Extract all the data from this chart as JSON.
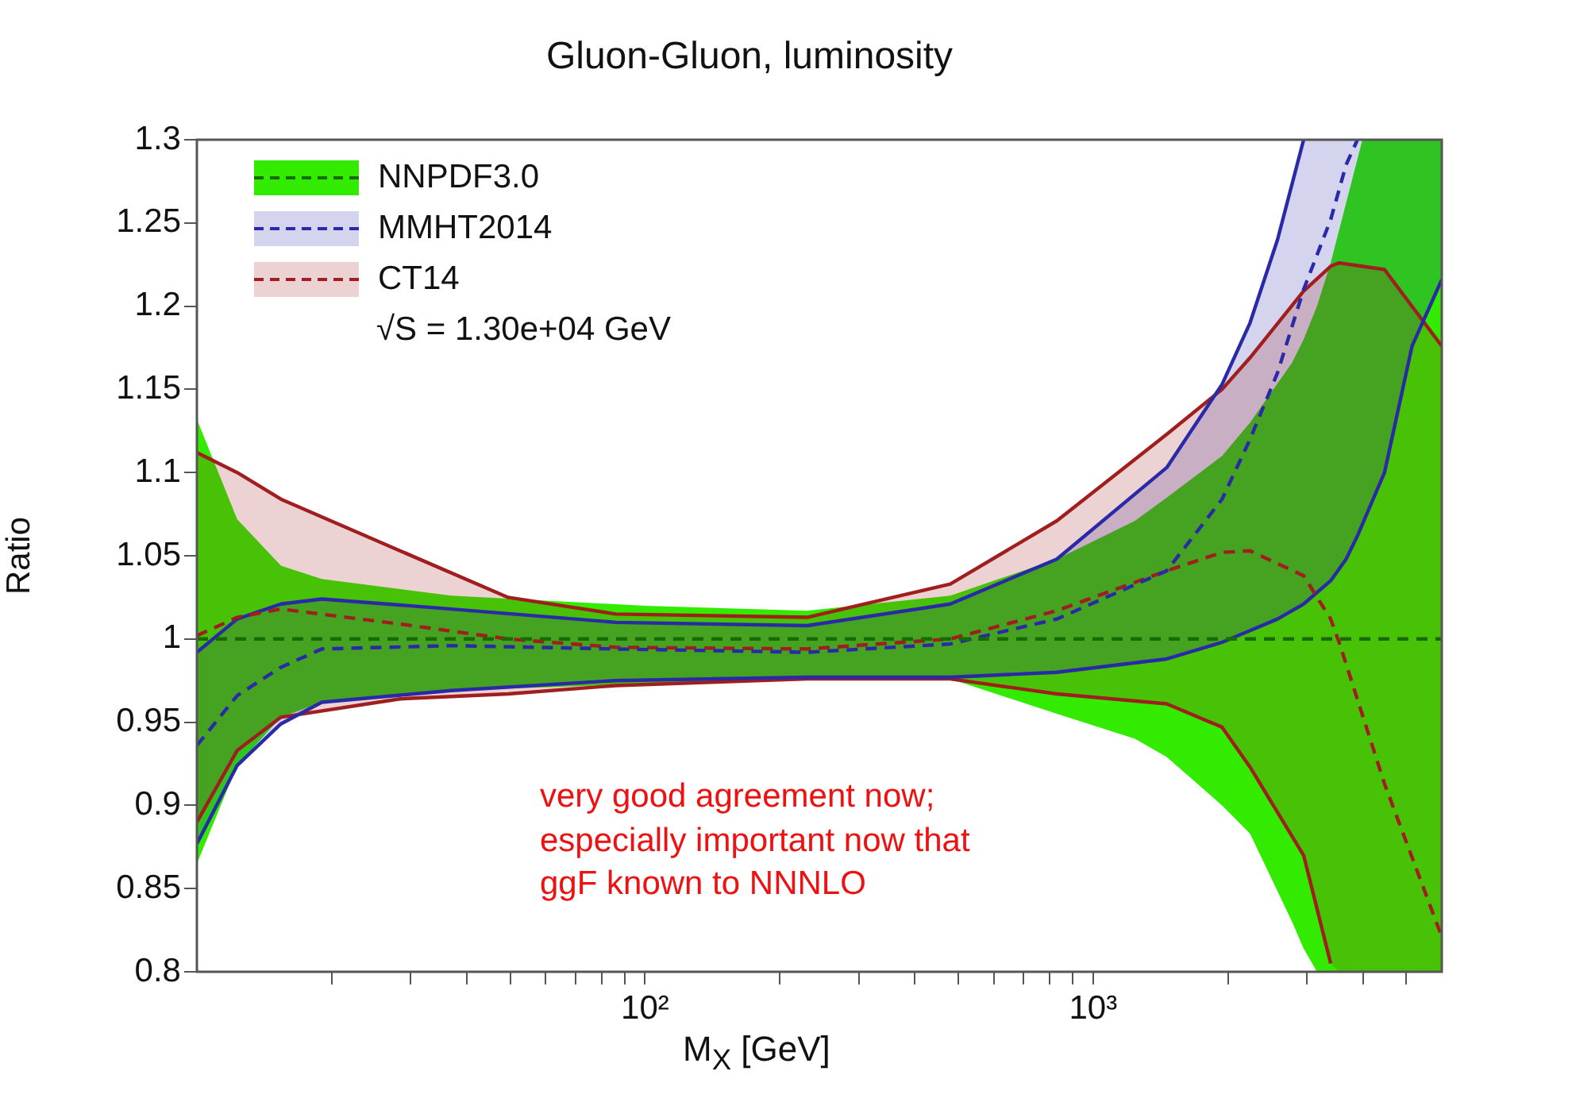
{
  "chart_data": {
    "type": "line",
    "title": "Gluon-Gluon, luminosity",
    "xlabel": "M$_{X}$ [GeV]",
    "ylabel": "Ratio",
    "log": "x",
    "legend": "top left",
    "grid": false,
    "xlim": [
      10,
      6000
    ],
    "ylim": [
      0.8,
      1.3
    ],
    "xticks": [
      {
        "value": 20,
        "label": null
      },
      {
        "value": 30,
        "label": null
      },
      {
        "value": 40,
        "label": null
      },
      {
        "value": 50,
        "label": null
      },
      {
        "value": 60,
        "label": null
      },
      {
        "value": 70,
        "label": null
      },
      {
        "value": 80,
        "label": null
      },
      {
        "value": 90,
        "label": null
      },
      {
        "value": 100,
        "label": "10²"
      },
      {
        "value": 200,
        "label": null
      },
      {
        "value": 300,
        "label": null
      },
      {
        "value": 400,
        "label": null
      },
      {
        "value": 500,
        "label": null
      },
      {
        "value": 600,
        "label": null
      },
      {
        "value": 700,
        "label": null
      },
      {
        "value": 800,
        "label": null
      },
      {
        "value": 900,
        "label": null
      },
      {
        "value": 1000,
        "label": "10³"
      },
      {
        "value": 2000,
        "label": null
      },
      {
        "value": 3000,
        "label": null
      },
      {
        "value": 4000,
        "label": null
      },
      {
        "value": 5000,
        "label": null
      }
    ],
    "yticks": [
      0.8,
      0.85,
      0.9,
      0.95,
      1,
      1.05,
      1.1,
      1.15,
      1.2,
      1.25,
      1.3
    ],
    "series": [
      {
        "name": "NNPDF3.0",
        "color": "#176b00",
        "line_style": "dashed",
        "x": [
          10,
          12.3,
          15.4,
          19,
          37,
          100,
          230,
          480,
          830,
          1240,
          1460,
          1940,
          2240,
          2780,
          2950,
          3160,
          3390,
          3990,
          6000
        ],
        "values": [
          1,
          1,
          1,
          1,
          1,
          1,
          1,
          1,
          1,
          1,
          1,
          1,
          1,
          1,
          1,
          1,
          1,
          1,
          1
        ],
        "upper": [
          1.132,
          1.072,
          1.044,
          1.036,
          1.026,
          1.02,
          1.017,
          1.026,
          1.048,
          1.071,
          1.085,
          1.11,
          1.13,
          1.166,
          1.18,
          1.2,
          1.226,
          1.3,
          1.3
        ],
        "lower": [
          0.865,
          0.924,
          0.953,
          0.962,
          0.969,
          0.973,
          0.976,
          0.976,
          0.955,
          0.94,
          0.929,
          0.9,
          0.883,
          0.83,
          0.814,
          0.8,
          0.8,
          0.8,
          0.8
        ]
      },
      {
        "name": "MMHT2014",
        "color": "#2a2aa8",
        "line_style": "dashed",
        "x": [
          10,
          12.3,
          15.4,
          19,
          37,
          86,
          230,
          480,
          830,
          1460,
          1940,
          2240,
          2580,
          2950,
          3390,
          3670,
          3890,
          4470,
          5150,
          6000
        ],
        "values": [
          0.936,
          0.966,
          0.983,
          0.994,
          0.996,
          0.994,
          0.992,
          0.997,
          1.012,
          1.041,
          1.084,
          1.12,
          1.16,
          1.21,
          1.252,
          1.285,
          1.3,
          null,
          null,
          null
        ],
        "upper": [
          0.992,
          1.012,
          1.021,
          1.024,
          1.018,
          1.01,
          1.008,
          1.021,
          1.048,
          1.103,
          1.153,
          1.19,
          1.24,
          1.3,
          1.3,
          1.3,
          1.3,
          1.3,
          1.3,
          1.3
        ],
        "lower": [
          0.877,
          0.924,
          0.949,
          0.962,
          0.969,
          0.975,
          0.977,
          0.977,
          0.98,
          0.988,
          0.998,
          1.005,
          1.012,
          1.021,
          1.035,
          1.048,
          1.062,
          1.1,
          1.176,
          1.216
        ]
      },
      {
        "name": "CT14",
        "color": "#a01e1e",
        "line_style": "dashed",
        "x": [
          10,
          12.3,
          15.4,
          28.4,
          49.5,
          86,
          230,
          480,
          830,
          1460,
          1940,
          2240,
          2950,
          3390,
          3540,
          4470,
          6000
        ],
        "values": [
          1.002,
          1.013,
          1.018,
          1.009,
          1,
          0.995,
          0.994,
          1,
          1.017,
          1.041,
          1.052,
          1.053,
          1.038,
          1.012,
          0.998,
          0.913,
          0.821
        ],
        "upper": [
          1.112,
          1.1,
          1.084,
          1.053,
          1.025,
          1.015,
          1.013,
          1.033,
          1.071,
          1.123,
          1.15,
          1.169,
          1.209,
          1.224,
          1.226,
          1.222,
          1.176
        ],
        "lower": [
          0.89,
          0.933,
          0.953,
          0.964,
          0.967,
          0.972,
          0.976,
          0.976,
          0.967,
          0.961,
          0.947,
          0.923,
          0.87,
          0.805,
          0.8,
          0.8,
          0.8
        ]
      },
      {
        "color": "#2a2aa8",
        "line_style": "solid",
        "x": [
          10,
          12.3,
          15.4,
          19,
          37,
          86,
          230,
          480,
          830,
          1460,
          1940,
          2240,
          2580,
          2950
        ],
        "values": [
          0.992,
          1.012,
          1.021,
          1.024,
          1.018,
          1.01,
          1.008,
          1.021,
          1.048,
          1.103,
          1.153,
          1.19,
          1.24,
          1.3
        ]
      },
      {
        "color": "#2a2aa8",
        "line_style": "solid",
        "x": [
          10,
          12.3,
          15.4,
          19,
          37,
          86,
          230,
          480,
          830,
          1460,
          1940,
          2240,
          2580,
          2950,
          3390,
          3670,
          3890,
          4470,
          5150,
          6000
        ],
        "values": [
          0.877,
          0.924,
          0.949,
          0.962,
          0.969,
          0.975,
          0.977,
          0.977,
          0.98,
          0.988,
          0.998,
          1.005,
          1.012,
          1.021,
          1.035,
          1.048,
          1.062,
          1.1,
          1.176,
          1.216
        ]
      },
      {
        "color": "#a01e1e",
        "line_style": "solid",
        "x": [
          10,
          12.3,
          15.4,
          28.4,
          49.5,
          86,
          230,
          480,
          830,
          1460,
          1940,
          2240,
          2950,
          3390,
          3540,
          4470,
          6000
        ],
        "values": [
          1.112,
          1.1,
          1.084,
          1.053,
          1.025,
          1.015,
          1.013,
          1.033,
          1.071,
          1.123,
          1.15,
          1.169,
          1.209,
          1.224,
          1.226,
          1.222,
          1.176
        ]
      },
      {
        "color": "#a01e1e",
        "line_style": "solid",
        "x": [
          10,
          12.3,
          15.4,
          28.4,
          49.5,
          86,
          230,
          480,
          830,
          1460,
          1940,
          2240,
          2950,
          3390
        ],
        "values": [
          0.89,
          0.933,
          0.953,
          0.964,
          0.967,
          0.972,
          0.976,
          0.976,
          0.967,
          0.961,
          0.947,
          0.923,
          0.87,
          0.805
        ]
      }
    ],
    "annotations": [
      "√S = 1.30e+04 GeV",
      "very good agreement now;\nespecially important now that\nggF known to NNNLO"
    ]
  }
}
